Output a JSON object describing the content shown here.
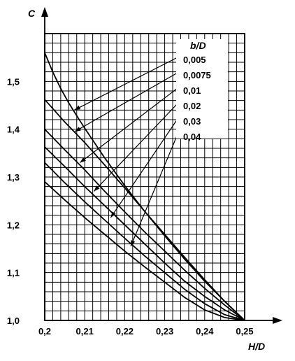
{
  "chart_data": {
    "type": "line",
    "ylabel": "C",
    "xlabel": "H/D",
    "xlim": [
      0.2,
      0.25
    ],
    "ylim": [
      1.0,
      1.6
    ],
    "x_ticks": [
      {
        "v": 0.2,
        "label": "0,2"
      },
      {
        "v": 0.21,
        "label": "0,21"
      },
      {
        "v": 0.22,
        "label": "0,22"
      },
      {
        "v": 0.23,
        "label": "0,23"
      },
      {
        "v": 0.24,
        "label": "0,24"
      },
      {
        "v": 0.25,
        "label": "0,25"
      }
    ],
    "y_ticks": [
      {
        "v": 1.0,
        "label": "1,0"
      },
      {
        "v": 1.1,
        "label": "1,1"
      },
      {
        "v": 1.2,
        "label": "1,2"
      },
      {
        "v": 1.3,
        "label": "1,3"
      },
      {
        "v": 1.4,
        "label": "1,4"
      },
      {
        "v": 1.5,
        "label": "1,5"
      }
    ],
    "grid": true,
    "grid_minor_x_step": 0.002,
    "grid_minor_y_step": 0.02,
    "legend_title": "b/D",
    "legend_position": "top-right",
    "series": [
      {
        "name": "0,005",
        "x": [
          0.2,
          0.202,
          0.204,
          0.206,
          0.208,
          0.21,
          0.215,
          0.22,
          0.225,
          0.23,
          0.235,
          0.24,
          0.245,
          0.25
        ],
        "y": [
          1.56,
          1.52,
          1.485,
          1.455,
          1.428,
          1.402,
          1.34,
          1.282,
          1.228,
          1.177,
          1.128,
          1.082,
          1.04,
          1.0
        ],
        "label_at": [
          0.2074,
          1.44
        ]
      },
      {
        "name": "0,0075",
        "x": [
          0.2,
          0.205,
          0.21,
          0.215,
          0.22,
          0.225,
          0.23,
          0.235,
          0.24,
          0.245,
          0.25
        ],
        "y": [
          1.462,
          1.415,
          1.372,
          1.325,
          1.277,
          1.228,
          1.18,
          1.132,
          1.085,
          1.04,
          1.0
        ],
        "label_at": [
          0.2075,
          1.395
        ]
      },
      {
        "name": "0,01",
        "x": [
          0.2,
          0.205,
          0.21,
          0.215,
          0.22,
          0.225,
          0.23,
          0.235,
          0.24,
          0.245,
          0.25
        ],
        "y": [
          1.4,
          1.357,
          1.315,
          1.27,
          1.227,
          1.185,
          1.145,
          1.105,
          1.067,
          1.032,
          1.0
        ],
        "label_at": [
          0.2088,
          1.33
        ]
      },
      {
        "name": "0,02",
        "x": [
          0.2,
          0.205,
          0.21,
          0.215,
          0.22,
          0.225,
          0.23,
          0.235,
          0.24,
          0.245,
          0.25
        ],
        "y": [
          1.363,
          1.322,
          1.28,
          1.24,
          1.2,
          1.16,
          1.12,
          1.082,
          1.05,
          1.022,
          1.0
        ],
        "label_at": [
          0.2123,
          1.27
        ]
      },
      {
        "name": "0,03",
        "x": [
          0.2,
          0.205,
          0.21,
          0.215,
          0.22,
          0.225,
          0.23,
          0.235,
          0.24,
          0.245,
          0.25
        ],
        "y": [
          1.33,
          1.288,
          1.248,
          1.21,
          1.172,
          1.135,
          1.1,
          1.065,
          1.035,
          1.012,
          1.0
        ],
        "label_at": [
          0.2165,
          1.215
        ]
      },
      {
        "name": "0,04",
        "x": [
          0.2,
          0.205,
          0.21,
          0.215,
          0.22,
          0.225,
          0.23,
          0.235,
          0.24,
          0.245,
          0.25
        ],
        "y": [
          1.29,
          1.252,
          1.215,
          1.18,
          1.145,
          1.112,
          1.08,
          1.048,
          1.022,
          1.006,
          1.0
        ],
        "label_at": [
          0.2215,
          1.155
        ]
      }
    ]
  }
}
